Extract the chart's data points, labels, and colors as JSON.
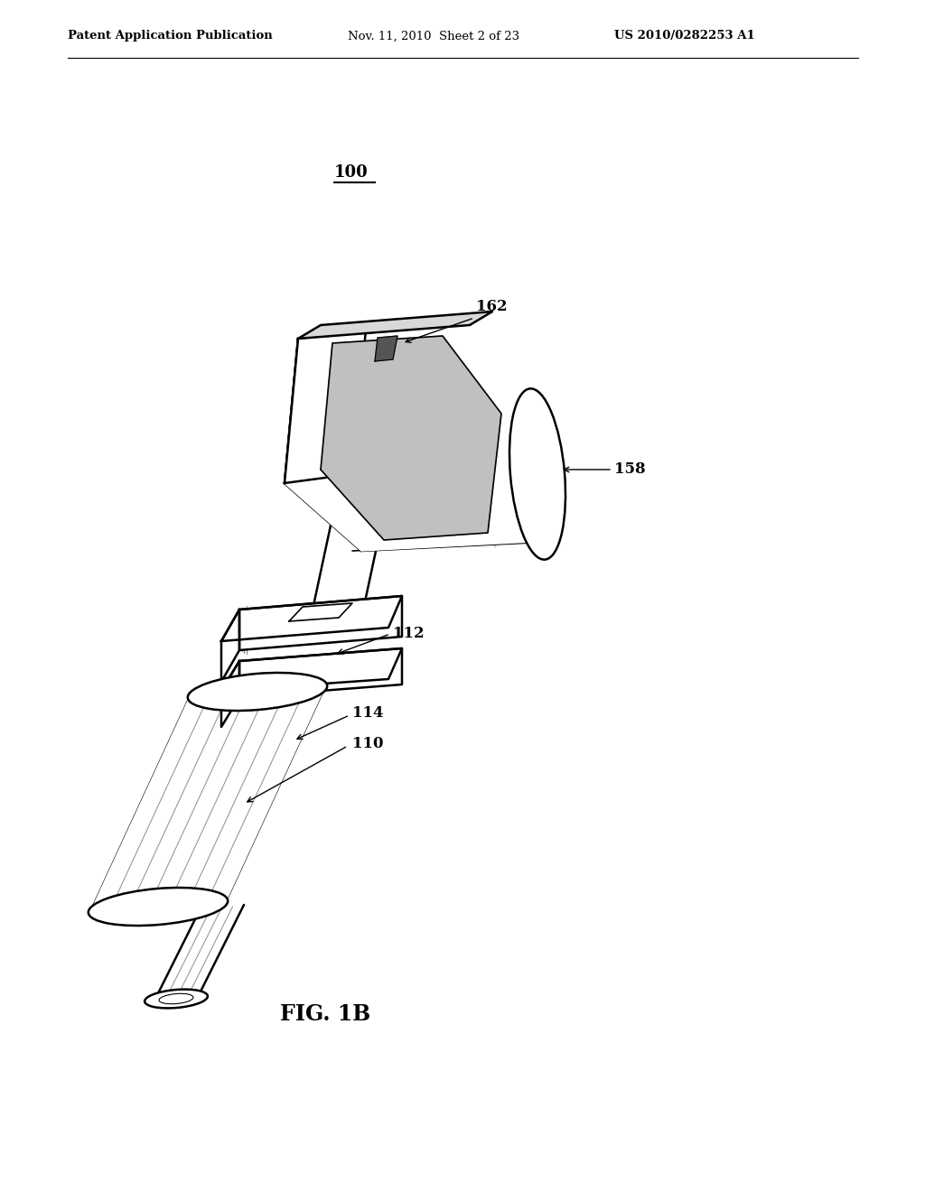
{
  "bg_color": "#ffffff",
  "header_left": "Patent Application Publication",
  "header_mid": "Nov. 11, 2010  Sheet 2 of 23",
  "header_right": "US 2010/0282253 A1",
  "fig_label": "FIG. 1B",
  "ref_main": "100",
  "header_fontsize": 9.5,
  "label_fontsize": 12,
  "fig_fontsize": 17
}
